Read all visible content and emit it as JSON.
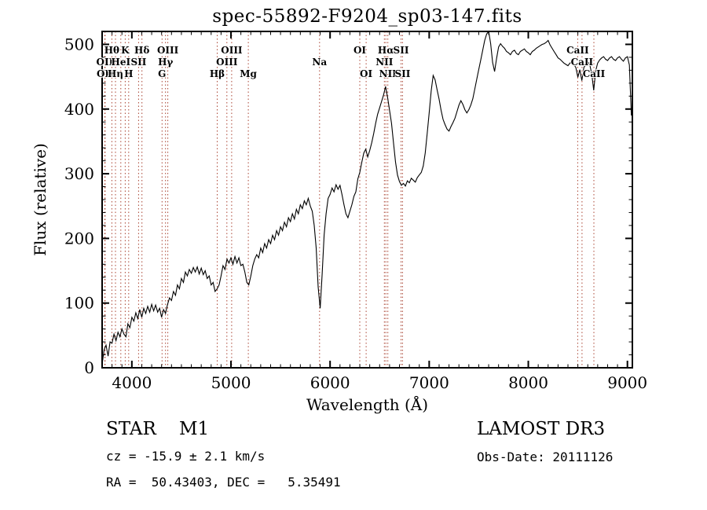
{
  "title": "spec-55892-F9204_sp03-147.fits",
  "annotations": {
    "classification": "STAR    M1",
    "cz": "cz = -15.9 ± 2.1 km/s",
    "radec": "RA =  50.43403, DEC =   5.35491",
    "survey": "LAMOST DR3",
    "obs_date": "Obs-Date: 20111126"
  },
  "chart_data": {
    "type": "line",
    "title": "spec-55892-F9204_sp03-147.fits",
    "xlabel": "Wavelength (Å)",
    "ylabel": "Flux (relative)",
    "xlim": [
      3700,
      9050
    ],
    "ylim": [
      0,
      520
    ],
    "x_ticks": [
      4000,
      5000,
      6000,
      7000,
      8000,
      9000
    ],
    "y_ticks": [
      0,
      100,
      200,
      300,
      400,
      500
    ],
    "x_minor_step": 100,
    "y_minor_step": 20,
    "grid": false,
    "series_color": "#000000",
    "spectral_line_color": "#aa4433",
    "x_start": 3700,
    "x_step": 20,
    "flux": [
      5,
      28,
      35,
      18,
      40,
      38,
      52,
      42,
      55,
      48,
      60,
      52,
      48,
      68,
      62,
      78,
      72,
      85,
      76,
      90,
      78,
      92,
      84,
      95,
      86,
      98,
      88,
      97,
      86,
      92,
      78,
      90,
      84,
      98,
      108,
      104,
      118,
      112,
      128,
      122,
      138,
      132,
      148,
      142,
      152,
      146,
      155,
      148,
      156,
      145,
      154,
      144,
      150,
      138,
      142,
      128,
      132,
      118,
      122,
      128,
      142,
      158,
      152,
      168,
      162,
      170,
      160,
      172,
      162,
      170,
      158,
      160,
      148,
      132,
      128,
      142,
      158,
      168,
      175,
      170,
      185,
      178,
      192,
      185,
      198,
      192,
      205,
      198,
      212,
      205,
      218,
      212,
      225,
      218,
      232,
      226,
      238,
      230,
      245,
      238,
      252,
      246,
      258,
      252,
      262,
      250,
      242,
      220,
      185,
      125,
      92,
      145,
      205,
      238,
      262,
      268,
      278,
      272,
      283,
      276,
      282,
      268,
      252,
      238,
      232,
      242,
      252,
      265,
      272,
      292,
      302,
      318,
      332,
      338,
      326,
      336,
      348,
      362,
      378,
      392,
      402,
      412,
      422,
      435,
      418,
      398,
      378,
      348,
      318,
      298,
      288,
      282,
      285,
      281,
      289,
      286,
      293,
      290,
      287,
      294,
      298,
      302,
      312,
      332,
      362,
      395,
      428,
      452,
      445,
      430,
      415,
      398,
      384,
      376,
      369,
      366,
      373,
      379,
      386,
      396,
      406,
      413,
      407,
      399,
      394,
      399,
      406,
      416,
      431,
      446,
      461,
      476,
      491,
      506,
      516,
      521,
      501,
      472,
      458,
      478,
      496,
      501,
      497,
      494,
      489,
      487,
      484,
      489,
      491,
      486,
      484,
      489,
      491,
      493,
      489,
      487,
      484,
      489,
      491,
      494,
      496,
      498,
      500,
      501,
      503,
      506,
      499,
      494,
      489,
      484,
      479,
      477,
      474,
      471,
      469,
      467,
      471,
      473,
      469,
      464,
      449,
      461,
      444,
      464,
      469,
      473,
      469,
      454,
      429,
      459,
      471,
      476,
      479,
      481,
      477,
      475,
      479,
      481,
      477,
      475,
      479,
      481,
      477,
      474,
      479,
      481,
      468,
      390
    ],
    "spectral_lines": [
      {
        "label": "OII",
        "wavelength": 3727,
        "row": 2
      },
      {
        "label": "OII",
        "wavelength": 3730,
        "row": 3
      },
      {
        "label": "Hθ",
        "wavelength": 3798,
        "row": 1
      },
      {
        "label": "Hη",
        "wavelength": 3835,
        "row": 3
      },
      {
        "label": "HeI",
        "wavelength": 3889,
        "row": 2
      },
      {
        "label": "K",
        "wavelength": 3933,
        "row": 1
      },
      {
        "label": "H",
        "wavelength": 3968,
        "row": 3
      },
      {
        "label": "SII",
        "wavelength": 4068,
        "row": 2
      },
      {
        "label": "Hδ",
        "wavelength": 4102,
        "row": 1
      },
      {
        "label": "G",
        "wavelength": 4305,
        "row": 3
      },
      {
        "label": "Hγ",
        "wavelength": 4340,
        "row": 2
      },
      {
        "label": "OIII",
        "wavelength": 4363,
        "row": 1
      },
      {
        "label": "Hβ",
        "wavelength": 4861,
        "row": 3
      },
      {
        "label": "OIII",
        "wavelength": 4959,
        "row": 2
      },
      {
        "label": "OIII",
        "wavelength": 5007,
        "row": 1
      },
      {
        "label": "Mg",
        "wavelength": 5175,
        "row": 3
      },
      {
        "label": "Na",
        "wavelength": 5894,
        "row": 2
      },
      {
        "label": "OI",
        "wavelength": 6300,
        "row": 1
      },
      {
        "label": "OI",
        "wavelength": 6364,
        "row": 3
      },
      {
        "label": "NII",
        "wavelength": 6548,
        "row": 2
      },
      {
        "label": "Hα",
        "wavelength": 6563,
        "row": 1
      },
      {
        "label": "NII",
        "wavelength": 6583,
        "row": 3
      },
      {
        "label": "SII",
        "wavelength": 6716,
        "row": 1
      },
      {
        "label": "SII",
        "wavelength": 6731,
        "row": 3
      },
      {
        "label": "CaII",
        "wavelength": 8498,
        "row": 1
      },
      {
        "label": "CaII",
        "wavelength": 8542,
        "row": 2
      },
      {
        "label": "CaII",
        "wavelength": 8662,
        "row": 3
      }
    ]
  }
}
